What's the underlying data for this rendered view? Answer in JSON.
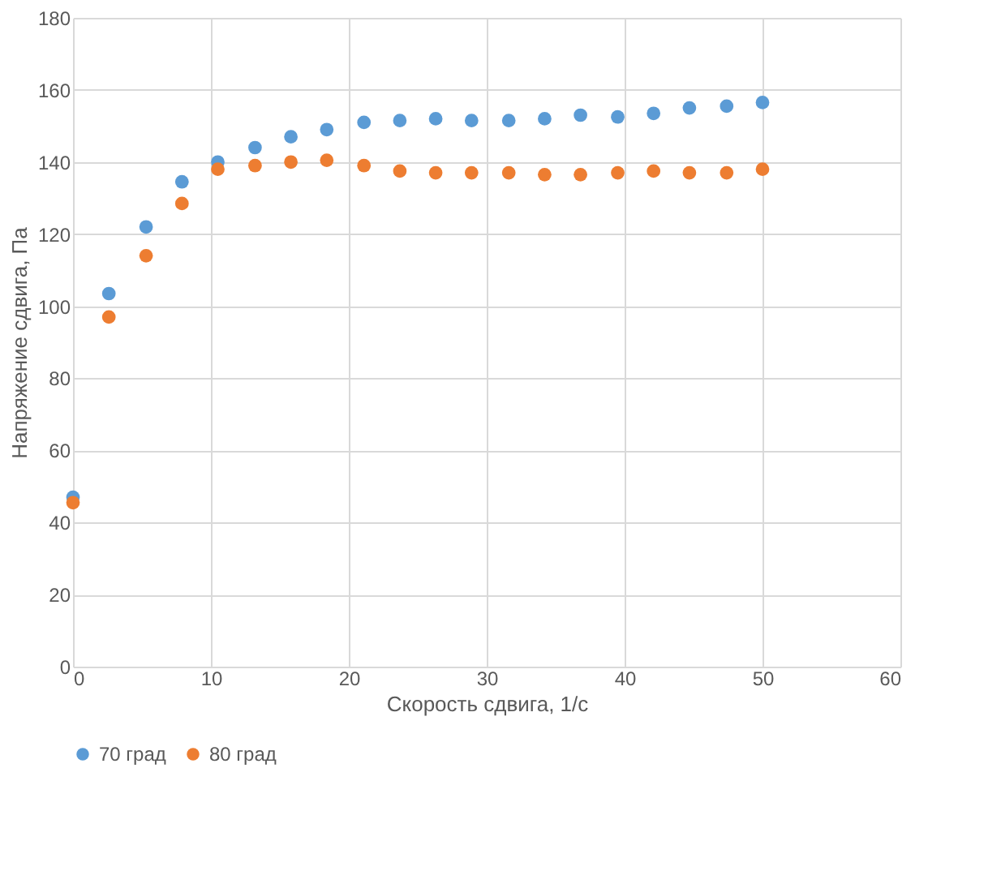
{
  "chart_data": {
    "type": "scatter",
    "xlabel": "Скорость сдвига, 1/с",
    "ylabel": "Напряжение сдвига, Па",
    "x": [
      0,
      2.6,
      5.3,
      7.9,
      10.5,
      13.2,
      15.8,
      18.4,
      21.1,
      23.7,
      26.3,
      28.9,
      31.6,
      34.2,
      36.8,
      39.5,
      42.1,
      44.7,
      47.4,
      50
    ],
    "series": [
      {
        "name": "70 град",
        "color": "#5b9bd5",
        "values": [
          47,
          103.5,
          122,
          134.5,
          140,
          144,
          147,
          149,
          151,
          151.5,
          152,
          151.5,
          151.5,
          152,
          153,
          152.5,
          153.5,
          155,
          155.5,
          156.5
        ]
      },
      {
        "name": "80 град",
        "color": "#ed7d31",
        "values": [
          45.5,
          97,
          114,
          128.5,
          138,
          139,
          140,
          140.5,
          139,
          137.5,
          137,
          137,
          137,
          136.5,
          136.5,
          137,
          137.5,
          137,
          137,
          138
        ]
      }
    ],
    "xlim": [
      0,
      60
    ],
    "xticks": [
      0,
      10,
      20,
      30,
      40,
      50,
      60
    ],
    "ylim": [
      0,
      180
    ],
    "yticks": [
      0,
      20,
      40,
      60,
      80,
      100,
      120,
      140,
      160,
      180
    ],
    "grid": true,
    "legend": "bottom",
    "marker": "circle"
  }
}
